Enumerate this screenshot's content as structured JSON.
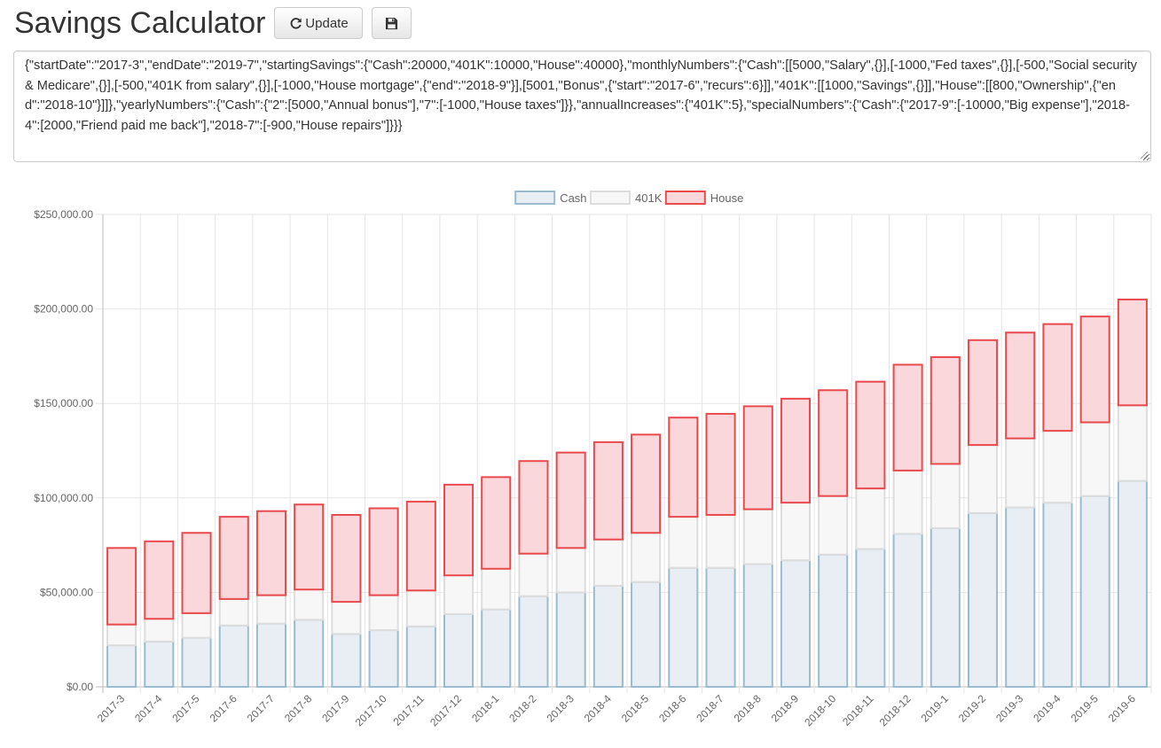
{
  "app": {
    "title": "Savings Calculator",
    "update_label": "Update",
    "update_icon": "refresh-icon",
    "save_icon": "floppy-disk-icon"
  },
  "config_text": "{\"startDate\":\"2017-3\",\"endDate\":\"2019-7\",\"startingSavings\":{\"Cash\":20000,\"401K\":10000,\"House\":40000},\"monthlyNumbers\":{\"Cash\":[[5000,\"Salary\",{}],[-1000,\"Fed taxes\",{}],[-500,\"Social security & Medicare\",{}],[-500,\"401K from salary\",{}],[-1000,\"House mortgage\",{\"end\":\"2018-9\"}],[5001,\"Bonus\",{\"start\":\"2017-6\",\"recurs\":6}]],\"401K\":[[1000,\"Savings\",{}]],\"House\":[[800,\"Ownership\",{\"end\":\"2018-10\"}]]},\"yearlyNumbers\":{\"Cash\":{\"2\":[5000,\"Annual bonus\"],\"7\":[-1000,\"House taxes\"]}},\"annualIncreases\":{\"401K\":5},\"specialNumbers\":{\"Cash\":{\"2017-9\":[-10000,\"Big expense\"],\"2018-4\":[2000,\"Friend paid me back\"],\"2018-7\":[-900,\"House repairs\"]}}}",
  "chart_data": {
    "type": "bar",
    "stacked": true,
    "legend_position": "top",
    "grid": true,
    "ylim": [
      0,
      250000
    ],
    "yticks": [
      0,
      50000,
      100000,
      150000,
      200000,
      250000
    ],
    "ytick_labels": [
      "$0.00",
      "$50,000.00",
      "$100,000.00",
      "$150,000.00",
      "$200,000.00",
      "$250,000.00"
    ],
    "categories": [
      "2017-3",
      "2017-4",
      "2017-5",
      "2017-6",
      "2017-7",
      "2017-8",
      "2017-9",
      "2017-10",
      "2017-11",
      "2017-12",
      "2018-1",
      "2018-2",
      "2018-3",
      "2018-4",
      "2018-5",
      "2018-6",
      "2018-7",
      "2018-8",
      "2018-9",
      "2018-10",
      "2018-11",
      "2018-12",
      "2019-1",
      "2019-2",
      "2019-3",
      "2019-4",
      "2019-5",
      "2019-6"
    ],
    "series": [
      {
        "name": "Cash",
        "fill": "#e8eef3",
        "stroke": "#9bbccf",
        "values": [
          22000,
          24000,
          26000,
          32500,
          33500,
          35500,
          28000,
          30000,
          32000,
          38500,
          41000,
          48000,
          50000,
          53500,
          55500,
          63000,
          63000,
          65000,
          67000,
          70000,
          73000,
          81000,
          84000,
          92000,
          95000,
          97500,
          101000,
          109000
        ]
      },
      {
        "name": "401K",
        "fill": "#f7f7f7",
        "stroke": "#dddddd",
        "values": [
          11000,
          12000,
          13000,
          14000,
          15000,
          16000,
          17000,
          18500,
          19000,
          20500,
          21500,
          22500,
          23500,
          24500,
          26000,
          27000,
          28000,
          29000,
          30500,
          31000,
          32000,
          33500,
          34000,
          36000,
          36500,
          38000,
          39000,
          40000
        ]
      },
      {
        "name": "House",
        "fill": "#f9d7da",
        "stroke": "#e84a4e",
        "values": [
          40500,
          41000,
          42500,
          43500,
          44500,
          45000,
          46000,
          46000,
          47000,
          48000,
          48500,
          49000,
          50500,
          51500,
          52000,
          52500,
          53500,
          54500,
          55000,
          56000,
          56500,
          56000,
          56500,
          55500,
          56000,
          56500,
          56000,
          56000
        ]
      }
    ]
  }
}
